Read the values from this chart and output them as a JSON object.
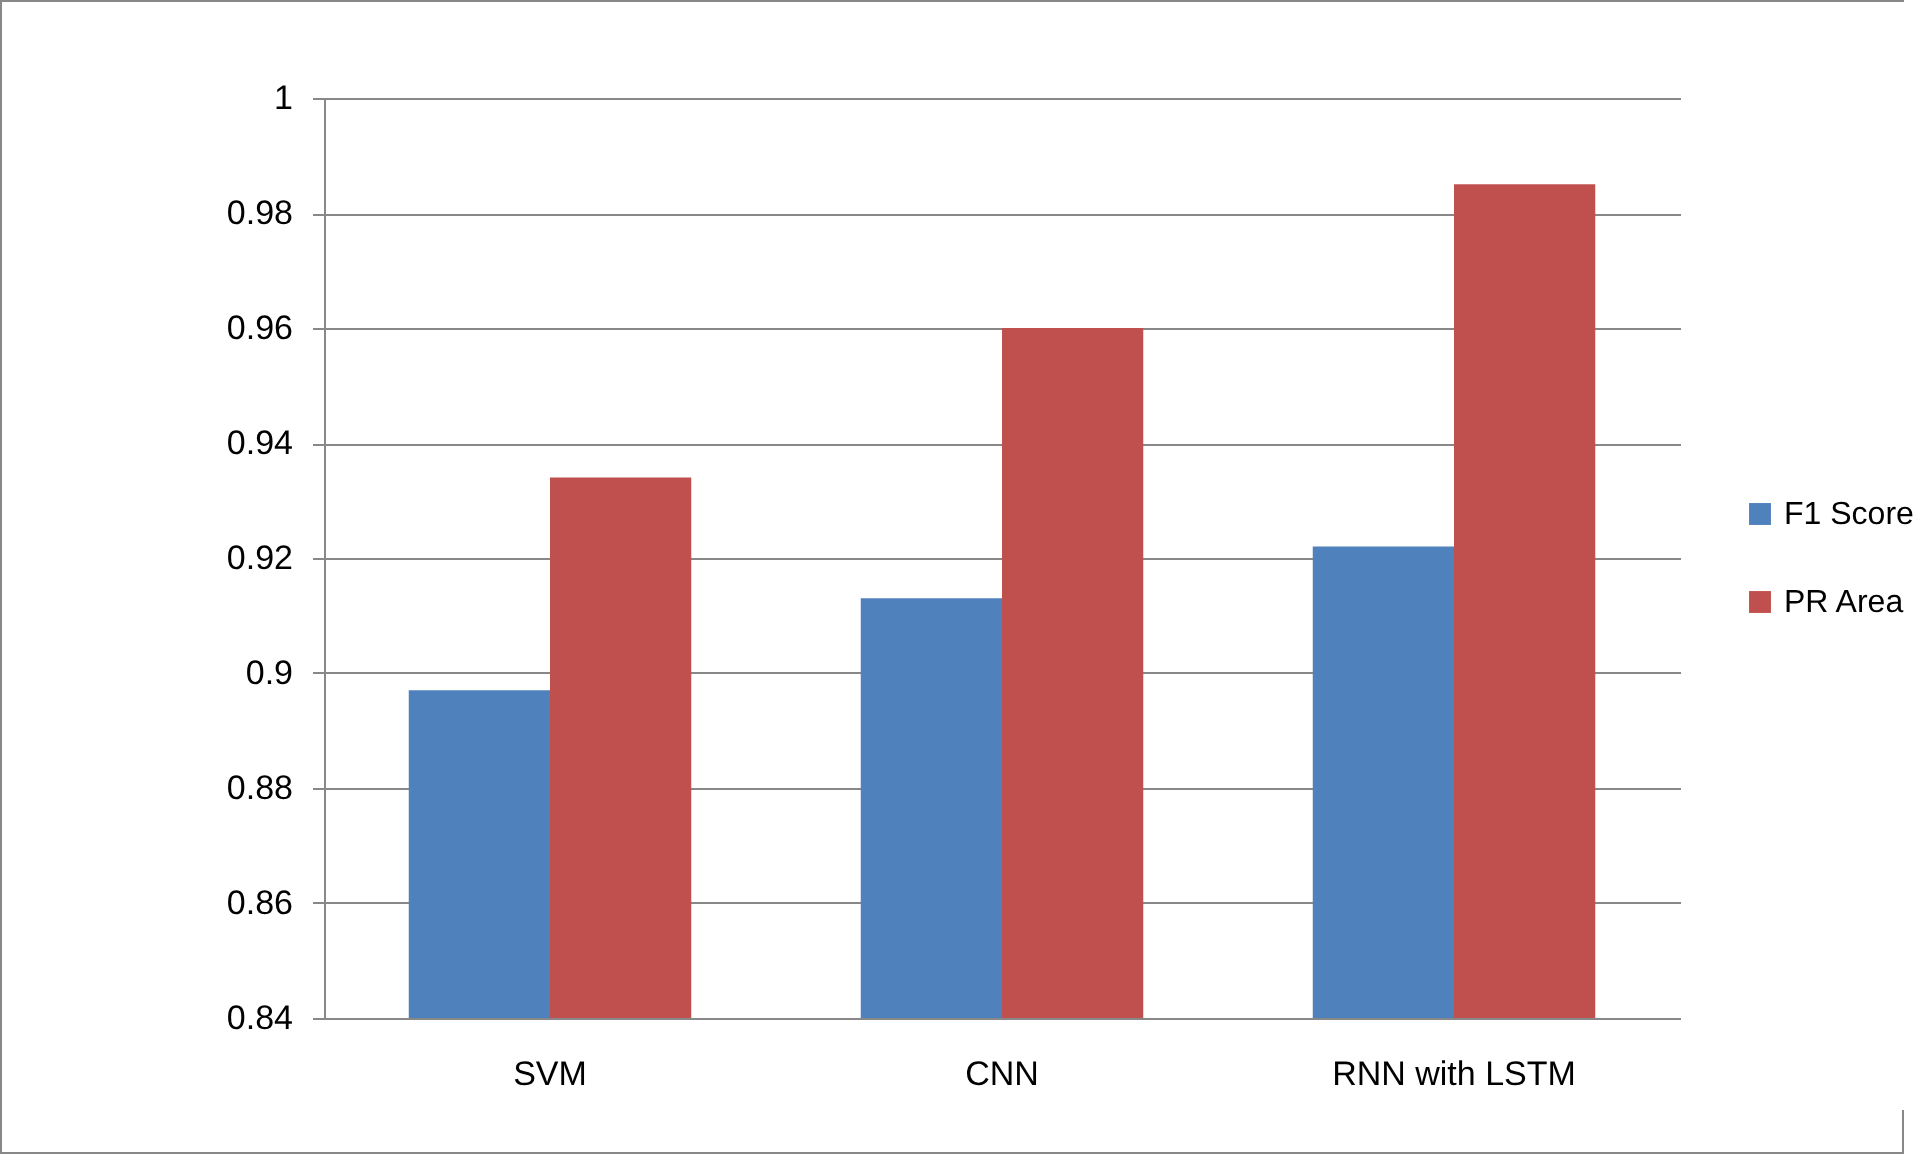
{
  "chart_data": {
    "type": "bar",
    "categories": [
      "SVM",
      "CNN",
      "RNN with LSTM"
    ],
    "series": [
      {
        "name": "F1 Score",
        "color": "#4f81bd",
        "values": [
          0.897,
          0.913,
          0.922
        ]
      },
      {
        "name": "PR Area",
        "color": "#c0504d",
        "values": [
          0.934,
          0.96,
          0.985
        ]
      }
    ],
    "ylim": [
      0.84,
      1
    ],
    "yticks": [
      0.84,
      0.86,
      0.88,
      0.9,
      0.92,
      0.94,
      0.96,
      0.98,
      1
    ],
    "grid": "y",
    "legend": "right"
  }
}
